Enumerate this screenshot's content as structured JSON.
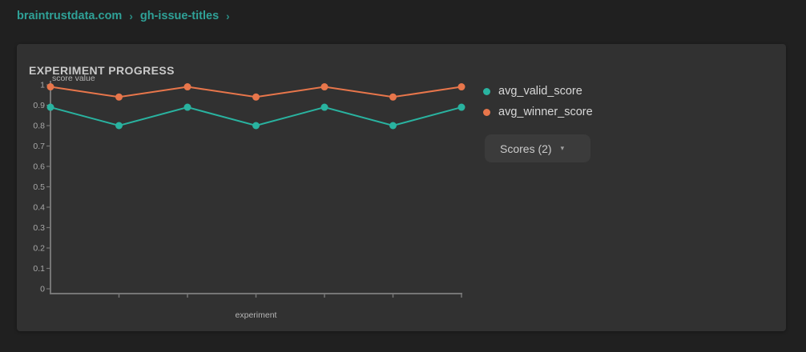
{
  "breadcrumb": {
    "items": [
      {
        "label": "braintrustdata.com"
      },
      {
        "label": "gh-issue-titles"
      }
    ],
    "separator": "›"
  },
  "panel": {
    "title": "EXPERIMENT PROGRESS"
  },
  "scores_button": {
    "label": "Scores (2)",
    "caret": "▾"
  },
  "colors": {
    "accent_teal": "#2fa197",
    "page_background": "#202020",
    "panel_background": "#313131",
    "axis": "#767676"
  },
  "chart_data": {
    "type": "line",
    "title": "EXPERIMENT PROGRESS",
    "xlabel": "experiment",
    "ylabel": "score value",
    "ylim": [
      0,
      1
    ],
    "ytick_labels": [
      "0",
      "0.1",
      "0.2",
      "0.3",
      "0.4",
      "0.5",
      "0.6",
      "0.7",
      "0.8",
      "0.9",
      "1"
    ],
    "xtick_count": 7,
    "xtick_labels": [],
    "grid": false,
    "legend_position": "right",
    "series": [
      {
        "name": "avg_valid_score",
        "color": "#29b3a0",
        "values": [
          0.89,
          0.8,
          0.89,
          0.8,
          0.89,
          0.8,
          0.89
        ]
      },
      {
        "name": "avg_winner_score",
        "color": "#e8764b",
        "values": [
          0.99,
          0.94,
          0.99,
          0.94,
          0.99,
          0.94,
          0.99
        ]
      }
    ]
  }
}
